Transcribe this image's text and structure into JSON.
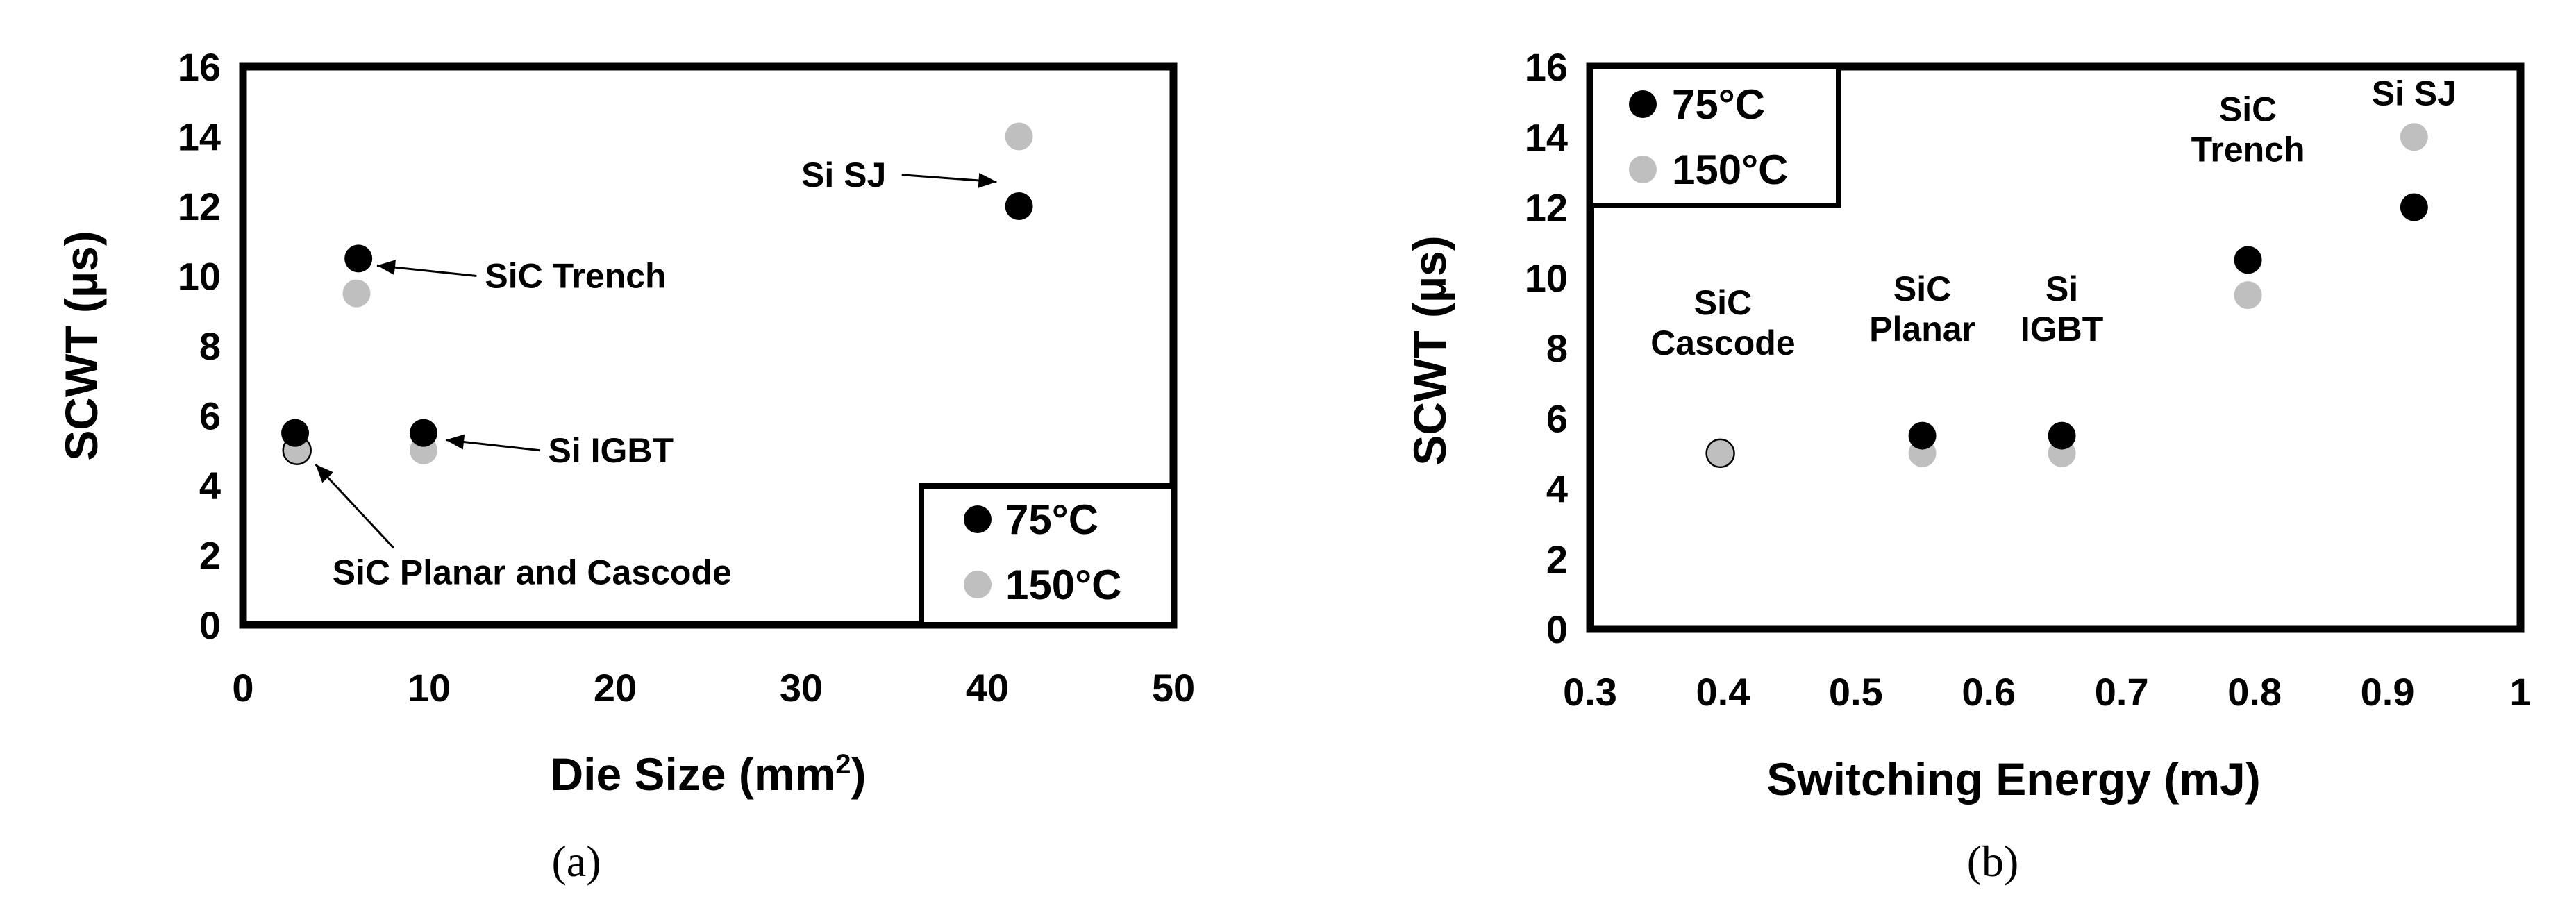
{
  "chart_data": [
    {
      "type": "scatter",
      "panel_label": "(a)",
      "xlabel": "Die Size (mm",
      "xlabel_sup": "2",
      "xlabel_tail": ")",
      "ylabel": "SCWT (µs)",
      "xlim": [
        0,
        50
      ],
      "ylim": [
        0,
        16
      ],
      "x_ticks": [
        "0",
        "10",
        "20",
        "30",
        "40",
        "50"
      ],
      "y_ticks": [
        "0",
        "2",
        "4",
        "6",
        "8",
        "10",
        "12",
        "14",
        "16"
      ],
      "legend": {
        "placement": "bottom-right",
        "entries": [
          "75°C",
          "150°C"
        ]
      },
      "series": [
        {
          "name": "75°C",
          "color": "#000000",
          "points": [
            {
              "x": 2.8,
              "y": 5.5
            },
            {
              "x": 6.2,
              "y": 10.5
            },
            {
              "x": 9.7,
              "y": 5.5
            },
            {
              "x": 41.7,
              "y": 12.0
            }
          ]
        },
        {
          "name": "150°C",
          "color": "#bfbfbf",
          "points": [
            {
              "x": 2.9,
              "y": 5.0
            },
            {
              "x": 6.1,
              "y": 9.5
            },
            {
              "x": 9.7,
              "y": 5.0
            },
            {
              "x": 41.7,
              "y": 14.0
            }
          ]
        }
      ],
      "annotations": [
        {
          "text": "SiC Trench",
          "x": 13,
          "y": 10.0,
          "arrow_to": {
            "x": 7.2,
            "y": 10.3
          }
        },
        {
          "text": "Si IGBT",
          "x": 16.4,
          "y": 5.0,
          "arrow_to": {
            "x": 10.9,
            "y": 5.3
          }
        },
        {
          "text": "Si SJ",
          "x": 30,
          "y": 12.9,
          "arrow_from": {
            "x": 35.4,
            "y": 12.9
          },
          "arrow_to": {
            "x": 40.5,
            "y": 12.7
          }
        },
        {
          "text": "SiC Planar and Cascode",
          "x": 4.8,
          "y": 1.5,
          "arrow_from": {
            "x": 8.1,
            "y": 2.2
          },
          "arrow_to": {
            "x": 3.9,
            "y": 4.6
          }
        }
      ]
    },
    {
      "type": "scatter",
      "panel_label": "(b)",
      "xlabel": "Switching Energy (mJ)",
      "ylabel": "SCWT (µs)",
      "xlim": [
        0.3,
        1.0
      ],
      "ylim": [
        0,
        16
      ],
      "x_ticks": [
        "0.3",
        "0.4",
        "0.5",
        "0.6",
        "0.7",
        "0.8",
        "0.9",
        "1"
      ],
      "y_ticks": [
        "0",
        "2",
        "4",
        "6",
        "8",
        "10",
        "12",
        "14",
        "16"
      ],
      "legend": {
        "placement": "top-left",
        "entries": [
          "75°C",
          "150°C"
        ]
      },
      "series": [
        {
          "name": "75°C",
          "color": "#000000",
          "points": [
            {
              "x": 0.55,
              "y": 5.5
            },
            {
              "x": 0.655,
              "y": 5.5
            },
            {
              "x": 0.795,
              "y": 10.5
            },
            {
              "x": 0.92,
              "y": 12.0
            }
          ]
        },
        {
          "name": "150°C",
          "color": "#bfbfbf",
          "points": [
            {
              "x": 0.398,
              "y": 5.0
            },
            {
              "x": 0.55,
              "y": 5.0
            },
            {
              "x": 0.655,
              "y": 5.0
            },
            {
              "x": 0.795,
              "y": 9.5
            },
            {
              "x": 0.92,
              "y": 14.0
            }
          ]
        }
      ],
      "annotations": [
        {
          "lines": [
            "SiC",
            "Cascode"
          ],
          "x": 0.4,
          "y": 7.8
        },
        {
          "lines": [
            "SiC",
            "Planar"
          ],
          "x": 0.55,
          "y": 8.2
        },
        {
          "lines": [
            "Si",
            "IGBT"
          ],
          "x": 0.655,
          "y": 8.2
        },
        {
          "lines": [
            "SiC",
            "Trench"
          ],
          "x": 0.795,
          "y": 13.3
        },
        {
          "lines": [
            "Si SJ"
          ],
          "x": 0.92,
          "y": 14.9
        }
      ]
    }
  ]
}
